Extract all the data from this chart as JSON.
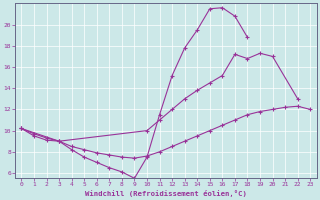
{
  "xlabel": "Windchill (Refroidissement éolien,°C)",
  "bg_color": "#cce8e8",
  "line_color": "#993399",
  "xlim": [
    -0.5,
    23.5
  ],
  "ylim": [
    5.5,
    22.0
  ],
  "xticks": [
    0,
    1,
    2,
    3,
    4,
    5,
    6,
    7,
    8,
    9,
    10,
    11,
    12,
    13,
    14,
    15,
    16,
    17,
    18,
    19,
    20,
    21,
    22,
    23
  ],
  "yticks": [
    6,
    8,
    10,
    12,
    14,
    16,
    18,
    20
  ],
  "series1_x": [
    0,
    1,
    2,
    3,
    4,
    5,
    6,
    7,
    8,
    9,
    10,
    11,
    12,
    13,
    14,
    15,
    16,
    17,
    18
  ],
  "series1_y": [
    10.2,
    9.5,
    9.1,
    9.0,
    8.2,
    7.5,
    7.0,
    6.5,
    6.1,
    5.5,
    7.5,
    11.5,
    15.2,
    17.8,
    19.5,
    21.5,
    21.6,
    20.8,
    18.8
  ],
  "series2_x": [
    0,
    3,
    10,
    11,
    12,
    13,
    14,
    15,
    16,
    17,
    18,
    19,
    20,
    22
  ],
  "series2_y": [
    10.2,
    9.0,
    10.0,
    11.0,
    12.0,
    13.0,
    13.8,
    14.5,
    15.2,
    17.2,
    16.8,
    17.3,
    17.0,
    13.0
  ],
  "series3_x": [
    0,
    1,
    2,
    3,
    4,
    5,
    6,
    7,
    8,
    9,
    10,
    11,
    12,
    13,
    14,
    15,
    16,
    17,
    18,
    19,
    20,
    21,
    22,
    23
  ],
  "series3_y": [
    10.2,
    9.7,
    9.3,
    9.0,
    8.5,
    8.2,
    7.9,
    7.7,
    7.5,
    7.4,
    7.6,
    8.0,
    8.5,
    9.0,
    9.5,
    10.0,
    10.5,
    11.0,
    11.5,
    11.8,
    12.0,
    12.2,
    12.3,
    12.0
  ]
}
